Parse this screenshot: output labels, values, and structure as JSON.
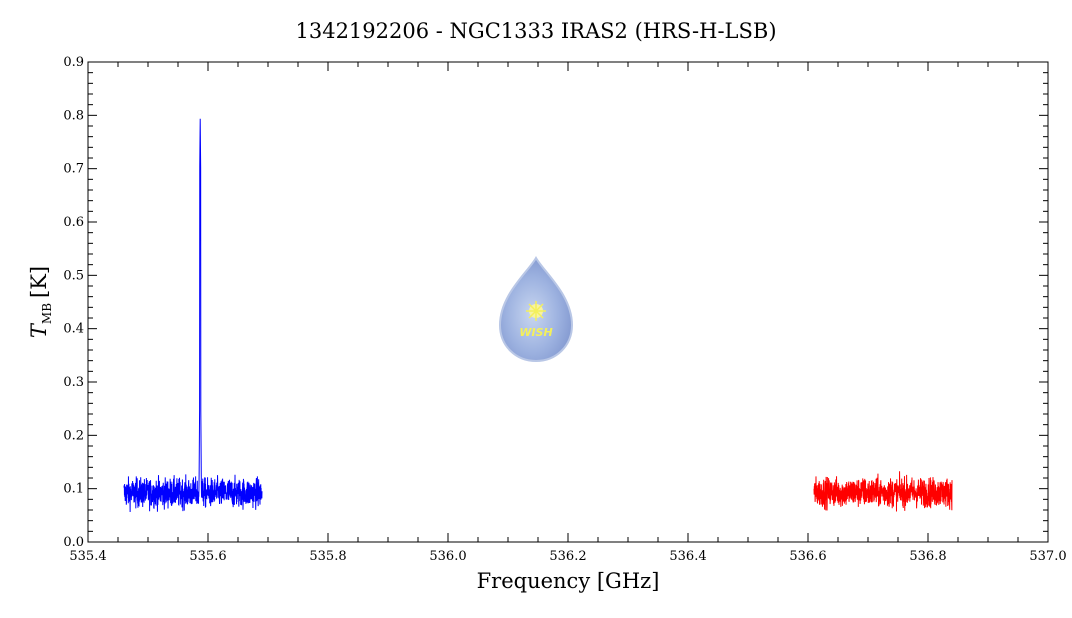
{
  "chart_data": {
    "type": "line",
    "title": "1342192206 - NGC1333 IRAS2 (HRS-H-LSB)",
    "xlabel": "Frequency [GHz]",
    "ylabel": {
      "symbol": "T",
      "subscript": "MB",
      "unit": "[K]"
    },
    "xlim": [
      535.4,
      537.0
    ],
    "ylim": [
      0.0,
      0.9
    ],
    "x_ticks": [
      "535.4",
      "535.6",
      "535.8",
      "536.0",
      "536.2",
      "536.4",
      "536.6",
      "536.8",
      "537.0"
    ],
    "y_ticks": [
      "0.0",
      "0.1",
      "0.2",
      "0.3",
      "0.4",
      "0.5",
      "0.6",
      "0.7",
      "0.8",
      "0.9"
    ],
    "grid": false,
    "series": [
      {
        "color": "#0000ff",
        "x_range": [
          535.46,
          535.69
        ],
        "baseline": 0.092,
        "noise_amplitude": 0.03,
        "line": {
          "center": 535.587,
          "peak": 0.795
        }
      },
      {
        "color": "#ff0000",
        "x_range": [
          536.61,
          536.84
        ],
        "baseline": 0.093,
        "noise_amplitude": 0.03
      }
    ]
  },
  "logo": {
    "text": "WISH"
  }
}
